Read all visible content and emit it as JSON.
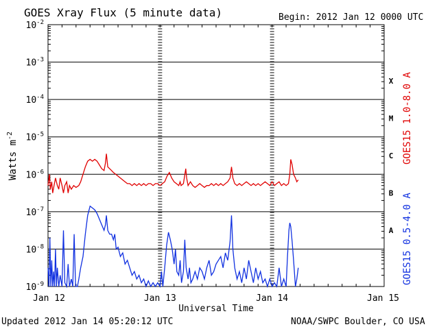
{
  "chart_data": {
    "type": "line",
    "title": "GOES Xray Flux (5 minute data)",
    "begin_label": "Begin:  2012 Jan 12 0000 UTC",
    "xlabel": "Universal Time",
    "ylabel": "Watts m",
    "ylabel_sup": "-2",
    "y_scale": "log",
    "ylim": [
      1e-09,
      0.01
    ],
    "y_ticks": [
      {
        "exp": -2,
        "base": "10",
        "sup": "-2"
      },
      {
        "exp": -3,
        "base": "10",
        "sup": "-3"
      },
      {
        "exp": -4,
        "base": "10",
        "sup": "-4"
      },
      {
        "exp": -5,
        "base": "10",
        "sup": "-5"
      },
      {
        "exp": -6,
        "base": "10",
        "sup": "-6"
      },
      {
        "exp": -7,
        "base": "10",
        "sup": "-7"
      },
      {
        "exp": -8,
        "base": "10",
        "sup": "-8"
      },
      {
        "exp": -9,
        "base": "10",
        "sup": "-9"
      }
    ],
    "x_unit": "hours since 2012 Jan 12 0000 UTC",
    "xlim": [
      0,
      72
    ],
    "x_ticks": [
      {
        "x": 0,
        "label": "Jan 12"
      },
      {
        "x": 24,
        "label": "Jan 13"
      },
      {
        "x": 48,
        "label": "Jan 14"
      },
      {
        "x": 72,
        "label": "Jan 15"
      }
    ],
    "flare_classes": [
      {
        "label": "X",
        "exp": -3.5
      },
      {
        "label": "M",
        "exp": -4.5
      },
      {
        "label": "C",
        "exp": -5.5
      },
      {
        "label": "B",
        "exp": -6.5
      },
      {
        "label": "A",
        "exp": -7.5
      }
    ],
    "series": [
      {
        "name": "GOES15 1.0-8.0 A",
        "color": "#e00000",
        "points": [
          [
            0,
            -6.3
          ],
          [
            0.3,
            -6.0
          ],
          [
            0.5,
            -6.4
          ],
          [
            0.8,
            -6.2
          ],
          [
            1,
            -6.5
          ],
          [
            1.3,
            -6.3
          ],
          [
            1.6,
            -6.1
          ],
          [
            2,
            -6.3
          ],
          [
            2.3,
            -6.4
          ],
          [
            2.6,
            -6.1
          ],
          [
            3,
            -6.3
          ],
          [
            3.3,
            -6.5
          ],
          [
            3.6,
            -6.3
          ],
          [
            4,
            -6.2
          ],
          [
            4.3,
            -6.5
          ],
          [
            4.6,
            -6.3
          ],
          [
            5,
            -6.4
          ],
          [
            5.5,
            -6.3
          ],
          [
            6,
            -6.35
          ],
          [
            6.6,
            -6.3
          ],
          [
            7,
            -6.2
          ],
          [
            7.5,
            -6.0
          ],
          [
            8,
            -5.8
          ],
          [
            8.5,
            -5.65
          ],
          [
            9,
            -5.6
          ],
          [
            9.5,
            -5.65
          ],
          [
            10,
            -5.6
          ],
          [
            10.5,
            -5.65
          ],
          [
            11,
            -5.75
          ],
          [
            11.5,
            -5.85
          ],
          [
            12,
            -5.9
          ],
          [
            12.3,
            -5.7
          ],
          [
            12.5,
            -5.45
          ],
          [
            12.8,
            -5.8
          ],
          [
            13.2,
            -5.85
          ],
          [
            13.6,
            -5.9
          ],
          [
            14,
            -5.95
          ],
          [
            14.5,
            -6.0
          ],
          [
            15,
            -6.05
          ],
          [
            15.5,
            -6.1
          ],
          [
            16,
            -6.15
          ],
          [
            16.5,
            -6.2
          ],
          [
            17,
            -6.25
          ],
          [
            17.5,
            -6.25
          ],
          [
            18,
            -6.3
          ],
          [
            18.5,
            -6.25
          ],
          [
            19,
            -6.3
          ],
          [
            19.5,
            -6.25
          ],
          [
            20,
            -6.3
          ],
          [
            20.5,
            -6.25
          ],
          [
            21,
            -6.3
          ],
          [
            21.5,
            -6.25
          ],
          [
            22,
            -6.25
          ],
          [
            22.5,
            -6.3
          ],
          [
            23,
            -6.25
          ],
          [
            23.5,
            -6.25
          ],
          [
            24,
            -6.3
          ],
          [
            24.5,
            -6.25
          ],
          [
            25,
            -6.2
          ],
          [
            25.5,
            -6.05
          ],
          [
            26,
            -5.95
          ],
          [
            26.5,
            -6.1
          ],
          [
            27,
            -6.2
          ],
          [
            27.5,
            -6.25
          ],
          [
            28,
            -6.3
          ],
          [
            28.3,
            -6.2
          ],
          [
            28.5,
            -6.3
          ],
          [
            29,
            -6.25
          ],
          [
            29.5,
            -5.85
          ],
          [
            29.7,
            -6.1
          ],
          [
            30,
            -6.3
          ],
          [
            30.5,
            -6.2
          ],
          [
            31,
            -6.3
          ],
          [
            31.5,
            -6.35
          ],
          [
            32,
            -6.3
          ],
          [
            32.5,
            -6.25
          ],
          [
            33,
            -6.3
          ],
          [
            33.5,
            -6.35
          ],
          [
            34,
            -6.3
          ],
          [
            34.5,
            -6.3
          ],
          [
            35,
            -6.25
          ],
          [
            35.5,
            -6.3
          ],
          [
            36,
            -6.25
          ],
          [
            36.5,
            -6.3
          ],
          [
            37,
            -6.25
          ],
          [
            37.5,
            -6.3
          ],
          [
            38,
            -6.25
          ],
          [
            38.5,
            -6.2
          ],
          [
            39,
            -6.1
          ],
          [
            39.3,
            -5.8
          ],
          [
            39.6,
            -6.1
          ],
          [
            40,
            -6.25
          ],
          [
            40.5,
            -6.3
          ],
          [
            41,
            -6.25
          ],
          [
            41.5,
            -6.3
          ],
          [
            42,
            -6.25
          ],
          [
            42.5,
            -6.2
          ],
          [
            43,
            -6.25
          ],
          [
            43.5,
            -6.3
          ],
          [
            44,
            -6.25
          ],
          [
            44.5,
            -6.3
          ],
          [
            45,
            -6.25
          ],
          [
            45.5,
            -6.3
          ],
          [
            46,
            -6.25
          ],
          [
            46.5,
            -6.2
          ],
          [
            47,
            -6.25
          ],
          [
            47.5,
            -6.3
          ],
          [
            48,
            -6.2
          ],
          [
            48.5,
            -6.3
          ],
          [
            49,
            -6.25
          ],
          [
            49.5,
            -6.2
          ],
          [
            50,
            -6.3
          ],
          [
            50.5,
            -6.25
          ],
          [
            51,
            -6.3
          ],
          [
            51.5,
            -6.25
          ],
          [
            51.8,
            -6.0
          ],
          [
            52,
            -5.6
          ],
          [
            52.3,
            -5.75
          ],
          [
            52.6,
            -6.0
          ],
          [
            53,
            -6.1
          ],
          [
            53.3,
            -6.2
          ],
          [
            53.6,
            -6.15
          ]
        ]
      },
      {
        "name": "GOES15 0.5-4.0 A",
        "color": "#1030e0",
        "points": [
          [
            0,
            -8.5
          ],
          [
            0.2,
            -9.0
          ],
          [
            0.4,
            -7.7
          ],
          [
            0.6,
            -9.0
          ],
          [
            0.8,
            -8.3
          ],
          [
            1,
            -9.0
          ],
          [
            1.2,
            -8.6
          ],
          [
            1.4,
            -9.0
          ],
          [
            1.6,
            -8.0
          ],
          [
            1.8,
            -9.0
          ],
          [
            2,
            -8.5
          ],
          [
            2.3,
            -9.0
          ],
          [
            2.6,
            -8.7
          ],
          [
            3,
            -9.0
          ],
          [
            3.3,
            -7.5
          ],
          [
            3.6,
            -8.9
          ],
          [
            4,
            -9.0
          ],
          [
            4.3,
            -8.4
          ],
          [
            4.6,
            -9.0
          ],
          [
            5,
            -8.8
          ],
          [
            5.3,
            -9.0
          ],
          [
            5.6,
            -7.6
          ],
          [
            5.9,
            -9.0
          ],
          [
            6.3,
            -9.0
          ],
          [
            6.6,
            -8.8
          ],
          [
            7,
            -8.5
          ],
          [
            7.5,
            -8.2
          ],
          [
            8,
            -7.6
          ],
          [
            8.5,
            -7.1
          ],
          [
            9,
            -6.85
          ],
          [
            9.5,
            -6.9
          ],
          [
            10,
            -6.95
          ],
          [
            10.5,
            -7.05
          ],
          [
            11,
            -7.2
          ],
          [
            11.5,
            -7.35
          ],
          [
            12,
            -7.5
          ],
          [
            12.3,
            -7.35
          ],
          [
            12.5,
            -7.1
          ],
          [
            12.8,
            -7.5
          ],
          [
            13.2,
            -7.6
          ],
          [
            13.6,
            -7.6
          ],
          [
            14,
            -7.75
          ],
          [
            14.3,
            -7.6
          ],
          [
            14.6,
            -8.0
          ],
          [
            15,
            -7.95
          ],
          [
            15.5,
            -8.2
          ],
          [
            16,
            -8.1
          ],
          [
            16.5,
            -8.4
          ],
          [
            17,
            -8.3
          ],
          [
            17.5,
            -8.5
          ],
          [
            18,
            -8.7
          ],
          [
            18.5,
            -8.6
          ],
          [
            19,
            -8.8
          ],
          [
            19.5,
            -8.7
          ],
          [
            20,
            -8.9
          ],
          [
            20.5,
            -8.8
          ],
          [
            21,
            -9.0
          ],
          [
            21.5,
            -8.85
          ],
          [
            22,
            -9.0
          ],
          [
            22.5,
            -8.9
          ],
          [
            23,
            -9.0
          ],
          [
            23.5,
            -8.9
          ],
          [
            24,
            -9.0
          ],
          [
            24.3,
            -8.6
          ],
          [
            24.6,
            -9.0
          ],
          [
            25,
            -8.5
          ],
          [
            25.4,
            -7.9
          ],
          [
            25.8,
            -7.55
          ],
          [
            26.2,
            -7.75
          ],
          [
            26.6,
            -8.0
          ],
          [
            27,
            -8.4
          ],
          [
            27.3,
            -8.0
          ],
          [
            27.6,
            -8.6
          ],
          [
            28,
            -8.7
          ],
          [
            28.3,
            -8.3
          ],
          [
            28.6,
            -8.9
          ],
          [
            29,
            -8.6
          ],
          [
            29.3,
            -7.75
          ],
          [
            29.6,
            -8.5
          ],
          [
            30,
            -8.8
          ],
          [
            30.3,
            -8.5
          ],
          [
            30.6,
            -8.9
          ],
          [
            31,
            -8.8
          ],
          [
            31.5,
            -8.6
          ],
          [
            32,
            -8.8
          ],
          [
            32.5,
            -8.5
          ],
          [
            33,
            -8.6
          ],
          [
            33.5,
            -8.8
          ],
          [
            34,
            -8.5
          ],
          [
            34.5,
            -8.3
          ],
          [
            35,
            -8.7
          ],
          [
            35.5,
            -8.6
          ],
          [
            36,
            -8.4
          ],
          [
            36.5,
            -8.3
          ],
          [
            37,
            -8.2
          ],
          [
            37.5,
            -8.5
          ],
          [
            38,
            -8.1
          ],
          [
            38.5,
            -8.3
          ],
          [
            39,
            -7.8
          ],
          [
            39.3,
            -7.1
          ],
          [
            39.6,
            -8.0
          ],
          [
            40,
            -8.5
          ],
          [
            40.5,
            -8.8
          ],
          [
            41,
            -8.6
          ],
          [
            41.5,
            -8.9
          ],
          [
            42,
            -8.5
          ],
          [
            42.5,
            -8.8
          ],
          [
            43,
            -8.3
          ],
          [
            43.5,
            -8.6
          ],
          [
            44,
            -8.9
          ],
          [
            44.5,
            -8.5
          ],
          [
            45,
            -8.8
          ],
          [
            45.5,
            -8.6
          ],
          [
            46,
            -8.9
          ],
          [
            46.5,
            -8.8
          ],
          [
            47,
            -9.0
          ],
          [
            47.5,
            -8.8
          ],
          [
            48,
            -9.0
          ],
          [
            48.5,
            -8.9
          ],
          [
            49,
            -9.0
          ],
          [
            49.5,
            -8.5
          ],
          [
            50,
            -9.0
          ],
          [
            50.5,
            -8.8
          ],
          [
            51,
            -9.0
          ],
          [
            51.3,
            -8.2
          ],
          [
            51.6,
            -7.5
          ],
          [
            51.8,
            -7.3
          ],
          [
            52,
            -7.4
          ],
          [
            52.3,
            -7.8
          ],
          [
            52.6,
            -8.3
          ],
          [
            53,
            -9.0
          ],
          [
            53.3,
            -8.8
          ],
          [
            53.6,
            -8.5
          ]
        ]
      }
    ]
  },
  "footer": {
    "updated": "Updated 2012 Jan 14 05:20:12 UTC",
    "credit": "NOAA/SWPC Boulder, CO USA"
  }
}
